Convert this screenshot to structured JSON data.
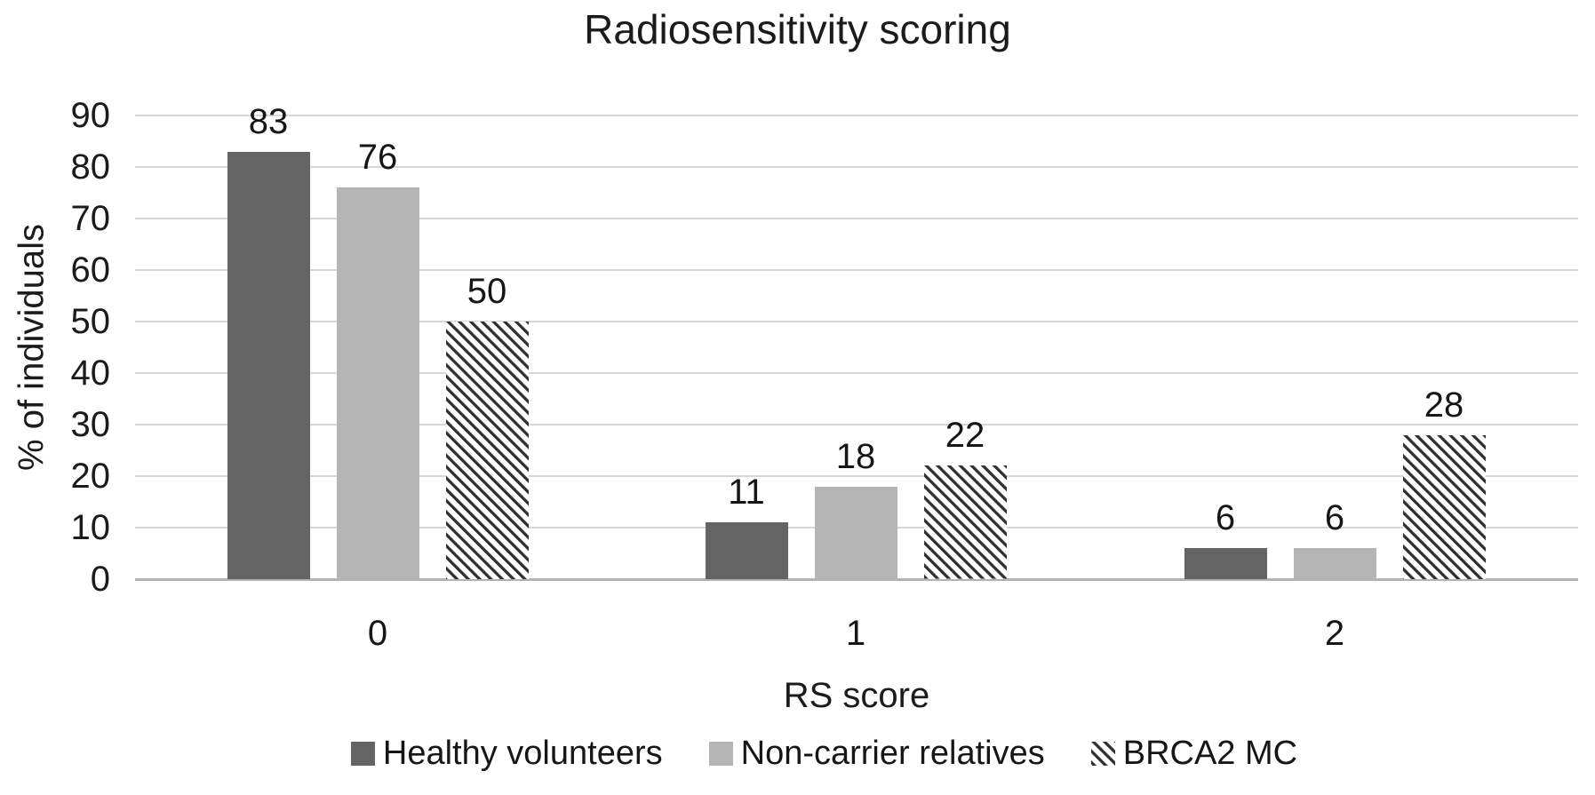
{
  "chart_data": {
    "type": "bar",
    "title": "Radiosensitivity scoring",
    "xlabel": "RS score",
    "ylabel": "% of individuals",
    "categories": [
      "0",
      "1",
      "2"
    ],
    "series": [
      {
        "name": "Healthy volunteers",
        "values": [
          83,
          11,
          6
        ],
        "color": "#646464",
        "pattern": "solid"
      },
      {
        "name": "Non-carrier relatives",
        "values": [
          76,
          18,
          6
        ],
        "color": "#b5b5b5",
        "pattern": "solid"
      },
      {
        "name": "BRCA2 MC",
        "values": [
          50,
          22,
          28
        ],
        "color": "#2f2f2f",
        "pattern": "diagonal-hatch"
      }
    ],
    "y_ticks": [
      0,
      10,
      20,
      30,
      40,
      50,
      60,
      70,
      80,
      90
    ],
    "ylim": [
      0,
      90
    ],
    "grid": true,
    "data_labels": true,
    "legend_position": "bottom",
    "colors": {
      "grid_line": "#d7d7d7",
      "axis_line": "#b2b2b2",
      "text": "#1c1c1c",
      "background": "#ffffff"
    }
  }
}
